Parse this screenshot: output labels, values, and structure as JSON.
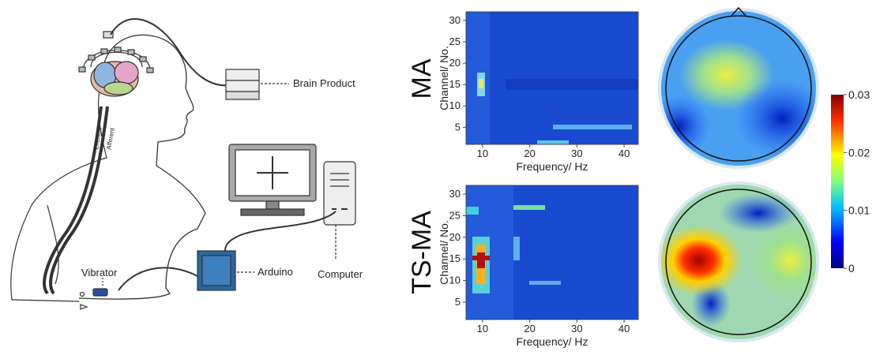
{
  "diagram": {
    "brain_product": "Brain Product",
    "computer": "Computer",
    "arduino": "Arduino",
    "vibrator": "Vibrator",
    "efferent": "Efferent",
    "afferent": "Afferent"
  },
  "panels": [
    {
      "row_label": "MA",
      "y_label": "Channel/ No.",
      "x_label": "Frequency/ Hz",
      "xlim": [
        6.5,
        43
      ],
      "xticks": [
        10,
        20,
        30,
        40
      ],
      "ylim": [
        1,
        32
      ],
      "yticks": [
        5,
        10,
        15,
        20,
        25,
        30
      ]
    },
    {
      "row_label": "TS-MA",
      "y_label": "Channel/ No.",
      "x_label": "Frequency/ Hz",
      "xlim": [
        6.5,
        43
      ],
      "xticks": [
        10,
        20,
        30,
        40
      ],
      "ylim": [
        1,
        32
      ],
      "yticks": [
        5,
        10,
        15,
        20,
        25,
        30
      ]
    }
  ],
  "colorbar": {
    "lim": [
      0,
      0.03
    ],
    "ticks": [
      0.03,
      0.02,
      0.01,
      0
    ]
  }
}
